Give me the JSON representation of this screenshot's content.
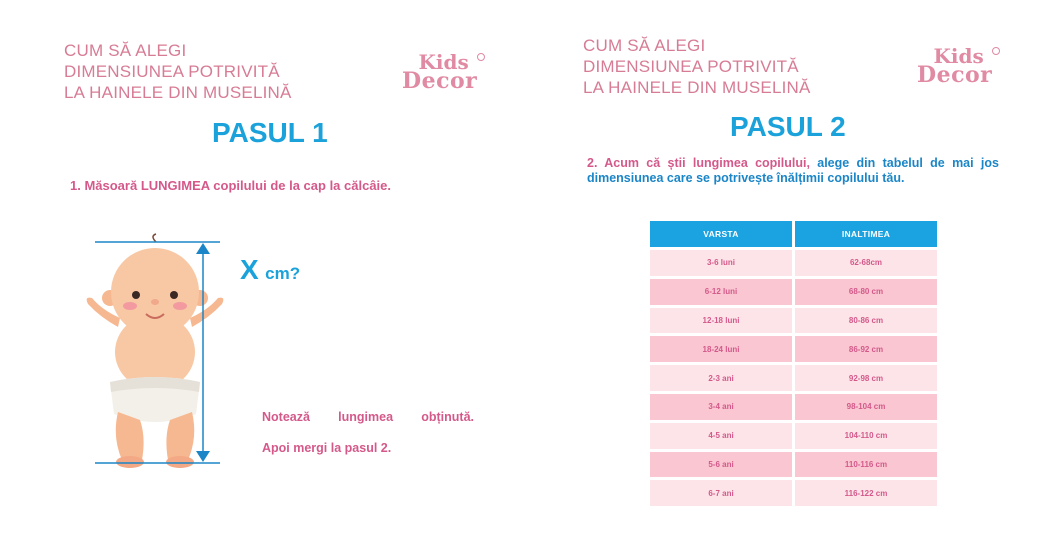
{
  "header": {
    "lines": [
      "CUM SĂ ALEGI",
      "DIMENSIUNEA POTRIVITĂ",
      "LA HAINELE DIN MUSELINĂ"
    ]
  },
  "logo": {
    "line1": "Kids",
    "line2": "Decor"
  },
  "step1": {
    "title": "PASUL 1",
    "instruction": "1. Măsoară LUNGIMEA copilului de la cap la călcâie.",
    "measure_x": "X",
    "measure_unit": "cm?",
    "note_line1": "Notează lungimea obținută.",
    "note_line2": "Apoi mergi la pasul 2."
  },
  "step2": {
    "title": "PASUL 2",
    "instruction_part1": "2. Acum că știi lungimea copilului, ",
    "instruction_part2": "alege din tabelul de mai jos dimensiunea care se potrivește înălțimii copilului tău.",
    "table": {
      "headers": [
        "VARSTA",
        "INALTIMEA"
      ],
      "rows": [
        [
          "3-6 luni",
          "62-68cm"
        ],
        [
          "6-12 luni",
          "68-80 cm"
        ],
        [
          "12-18 luni",
          "80-86 cm"
        ],
        [
          "18-24 luni",
          "86-92 cm"
        ],
        [
          "2-3 ani",
          "92-98 cm"
        ],
        [
          "3-4 ani",
          "98-104 cm"
        ],
        [
          "4-5 ani",
          "104-110 cm"
        ],
        [
          "5-6 ani",
          "110-116 cm"
        ],
        [
          "6-7 ani",
          "116-122 cm"
        ]
      ]
    }
  },
  "colors": {
    "pink_text": "#d4598a",
    "header_pink": "#d77c95",
    "blue": "#1ba2da",
    "row_light": "#fde4e9",
    "row_dark": "#f9c6d2"
  },
  "icons": [
    "baby-illustration",
    "measure-arrow-icon"
  ]
}
